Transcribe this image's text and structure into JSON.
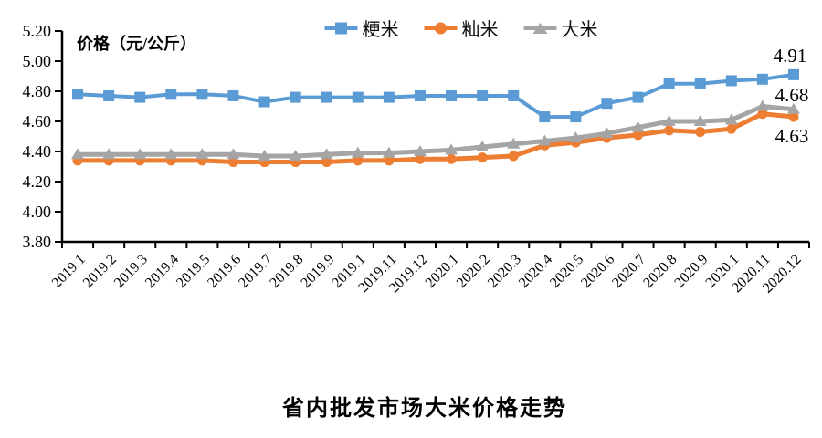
{
  "chart_data": {
    "type": "line",
    "title": "省内批发市场大米价格走势",
    "ylabel": "价格（元/公斤）",
    "xlabel": "",
    "ylim": [
      3.8,
      5.2
    ],
    "ytick_step": 0.2,
    "ytick_labels": [
      "5.20",
      "5.00",
      "4.80",
      "4.60",
      "4.40",
      "4.20",
      "4.00",
      "3.80"
    ],
    "grid": false,
    "legend_position": "top",
    "x_label_rotation_deg": -45,
    "categories": [
      "2019.1",
      "2019.2",
      "2019.3",
      "2019.4",
      "2019.5",
      "2019.6",
      "2019.7",
      "2019.8",
      "2019.9",
      "2019.1",
      "2019.11",
      "2019.12",
      "2020.1",
      "2020.2",
      "2020.3",
      "2020.4",
      "2020.5",
      "2020.6",
      "2020.7",
      "2020.8",
      "2020.9",
      "2020.1",
      "2020.11",
      "2020.12"
    ],
    "series": [
      {
        "name": "粳米",
        "color": "#5B9BD5",
        "marker": "square",
        "line_width": 4,
        "values": [
          4.78,
          4.77,
          4.76,
          4.78,
          4.78,
          4.77,
          4.73,
          4.76,
          4.76,
          4.76,
          4.76,
          4.77,
          4.77,
          4.77,
          4.77,
          4.63,
          4.63,
          4.72,
          4.76,
          4.85,
          4.85,
          4.87,
          4.88,
          4.91
        ],
        "end_label": "4.91"
      },
      {
        "name": "籼米",
        "color": "#ED7D31",
        "marker": "circle",
        "line_width": 5,
        "values": [
          4.34,
          4.34,
          4.34,
          4.34,
          4.34,
          4.33,
          4.33,
          4.33,
          4.33,
          4.34,
          4.34,
          4.35,
          4.35,
          4.36,
          4.37,
          4.44,
          4.46,
          4.49,
          4.51,
          4.54,
          4.53,
          4.55,
          4.65,
          4.63
        ],
        "end_label": "4.63"
      },
      {
        "name": "大米",
        "color": "#A5A5A5",
        "marker": "triangle",
        "line_width": 5,
        "values": [
          4.38,
          4.38,
          4.38,
          4.38,
          4.38,
          4.38,
          4.37,
          4.37,
          4.38,
          4.39,
          4.39,
          4.4,
          4.41,
          4.43,
          4.45,
          4.47,
          4.49,
          4.52,
          4.56,
          4.6,
          4.6,
          4.61,
          4.7,
          4.68
        ],
        "end_label": "4.68"
      }
    ]
  }
}
